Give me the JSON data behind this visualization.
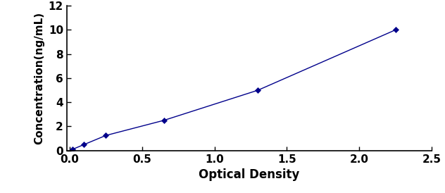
{
  "x": [
    0.02,
    0.1,
    0.25,
    0.65,
    1.3,
    2.25
  ],
  "y": [
    0.1,
    0.5,
    1.25,
    2.5,
    5.0,
    10.0
  ],
  "line_color": "#00008B",
  "marker_color": "#00008B",
  "marker_style": "D",
  "marker_size": 4,
  "line_width": 1.0,
  "xlabel": "Optical Density",
  "ylabel": "Concentration(ng/mL)",
  "xlim": [
    -0.02,
    2.5
  ],
  "ylim": [
    0,
    12
  ],
  "xticks": [
    0,
    0.5,
    1,
    1.5,
    2,
    2.5
  ],
  "yticks": [
    0,
    2,
    4,
    6,
    8,
    10,
    12
  ],
  "xlabel_fontsize": 12,
  "ylabel_fontsize": 11,
  "tick_fontsize": 11,
  "background_color": "#ffffff"
}
